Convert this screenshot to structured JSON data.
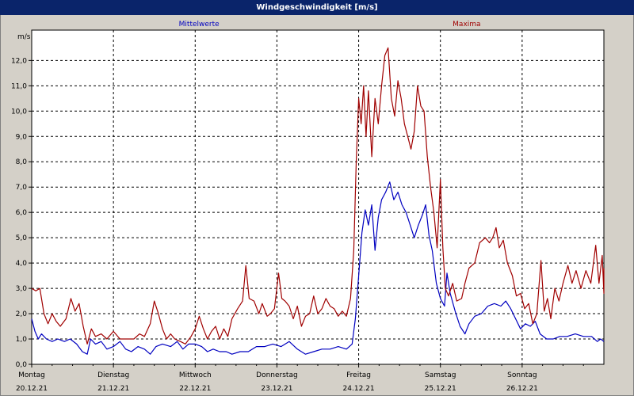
{
  "window": {
    "title": "Windgeschwindigkeit [m/s]"
  },
  "chart_data": {
    "type": "line",
    "title": "Windgeschwindigkeit [m/s]",
    "ylabel": "m/s",
    "ylim": [
      0,
      13.2
    ],
    "yticks": [
      "0,0",
      "1,0",
      "2,0",
      "3,0",
      "4,0",
      "5,0",
      "6,0",
      "7,0",
      "8,0",
      "9,0",
      "10,0",
      "11,0",
      "12,0"
    ],
    "xlim": [
      0,
      7
    ],
    "days": [
      {
        "day": "Montag",
        "date": "20.12.21"
      },
      {
        "day": "Dienstag",
        "date": "21.12.21"
      },
      {
        "day": "Mittwoch",
        "date": "22.12.21"
      },
      {
        "day": "Donnerstag",
        "date": "23.12.21"
      },
      {
        "day": "Freitag",
        "date": "24.12.21"
      },
      {
        "day": "Samstag",
        "date": "25.12.21"
      },
      {
        "day": "Sonntag",
        "date": "26.12.21"
      }
    ],
    "grid": true,
    "colors": {
      "mean": "#0000c0",
      "max": "#a00000"
    },
    "series": [
      {
        "name": "Mittelwerte",
        "points": [
          [
            0,
            1.8
          ],
          [
            0.04,
            1.3
          ],
          [
            0.08,
            1.0
          ],
          [
            0.12,
            1.2
          ],
          [
            0.18,
            1.0
          ],
          [
            0.25,
            0.9
          ],
          [
            0.32,
            1.0
          ],
          [
            0.4,
            0.9
          ],
          [
            0.47,
            1.0
          ],
          [
            0.55,
            0.8
          ],
          [
            0.62,
            0.5
          ],
          [
            0.68,
            0.4
          ],
          [
            0.72,
            1.0
          ],
          [
            0.78,
            0.8
          ],
          [
            0.85,
            0.9
          ],
          [
            0.92,
            0.6
          ],
          [
            1.0,
            0.7
          ],
          [
            1.08,
            0.9
          ],
          [
            1.15,
            0.6
          ],
          [
            1.22,
            0.5
          ],
          [
            1.3,
            0.7
          ],
          [
            1.38,
            0.6
          ],
          [
            1.45,
            0.4
          ],
          [
            1.52,
            0.7
          ],
          [
            1.6,
            0.8
          ],
          [
            1.7,
            0.7
          ],
          [
            1.78,
            0.9
          ],
          [
            1.85,
            0.6
          ],
          [
            1.92,
            0.8
          ],
          [
            2.0,
            0.8
          ],
          [
            2.08,
            0.7
          ],
          [
            2.15,
            0.5
          ],
          [
            2.22,
            0.6
          ],
          [
            2.3,
            0.5
          ],
          [
            2.38,
            0.5
          ],
          [
            2.45,
            0.4
          ],
          [
            2.55,
            0.5
          ],
          [
            2.65,
            0.5
          ],
          [
            2.75,
            0.7
          ],
          [
            2.85,
            0.7
          ],
          [
            2.95,
            0.8
          ],
          [
            3.05,
            0.7
          ],
          [
            3.15,
            0.9
          ],
          [
            3.25,
            0.6
          ],
          [
            3.35,
            0.4
          ],
          [
            3.45,
            0.5
          ],
          [
            3.55,
            0.6
          ],
          [
            3.65,
            0.6
          ],
          [
            3.75,
            0.7
          ],
          [
            3.85,
            0.6
          ],
          [
            3.92,
            0.8
          ],
          [
            3.96,
            1.8
          ],
          [
            4.0,
            3.5
          ],
          [
            4.04,
            5.2
          ],
          [
            4.08,
            6.1
          ],
          [
            4.12,
            5.5
          ],
          [
            4.16,
            6.3
          ],
          [
            4.2,
            4.5
          ],
          [
            4.24,
            5.8
          ],
          [
            4.28,
            6.5
          ],
          [
            4.33,
            6.8
          ],
          [
            4.38,
            7.2
          ],
          [
            4.43,
            6.5
          ],
          [
            4.48,
            6.8
          ],
          [
            4.53,
            6.3
          ],
          [
            4.58,
            6.0
          ],
          [
            4.63,
            5.5
          ],
          [
            4.68,
            5.0
          ],
          [
            4.73,
            5.5
          ],
          [
            4.78,
            5.9
          ],
          [
            4.82,
            6.3
          ],
          [
            4.86,
            5.1
          ],
          [
            4.9,
            4.5
          ],
          [
            4.95,
            3.2
          ],
          [
            5.0,
            2.6
          ],
          [
            5.05,
            2.3
          ],
          [
            5.08,
            3.6
          ],
          [
            5.12,
            2.8
          ],
          [
            5.18,
            2.1
          ],
          [
            5.24,
            1.5
          ],
          [
            5.3,
            1.2
          ],
          [
            5.35,
            1.6
          ],
          [
            5.42,
            1.9
          ],
          [
            5.5,
            2.0
          ],
          [
            5.58,
            2.3
          ],
          [
            5.66,
            2.4
          ],
          [
            5.74,
            2.3
          ],
          [
            5.8,
            2.5
          ],
          [
            5.86,
            2.2
          ],
          [
            5.92,
            1.8
          ],
          [
            5.98,
            1.4
          ],
          [
            6.04,
            1.6
          ],
          [
            6.1,
            1.5
          ],
          [
            6.16,
            1.7
          ],
          [
            6.22,
            1.2
          ],
          [
            6.3,
            1.0
          ],
          [
            6.38,
            1.0
          ],
          [
            6.46,
            1.1
          ],
          [
            6.55,
            1.1
          ],
          [
            6.65,
            1.2
          ],
          [
            6.75,
            1.1
          ],
          [
            6.85,
            1.1
          ],
          [
            6.92,
            0.9
          ],
          [
            6.96,
            1.0
          ],
          [
            7.0,
            0.9
          ]
        ]
      },
      {
        "name": "Maxima",
        "points": [
          [
            0,
            3.0
          ],
          [
            0.05,
            2.9
          ],
          [
            0.1,
            3.0
          ],
          [
            0.15,
            2.0
          ],
          [
            0.2,
            1.6
          ],
          [
            0.25,
            2.0
          ],
          [
            0.3,
            1.7
          ],
          [
            0.35,
            1.5
          ],
          [
            0.42,
            1.8
          ],
          [
            0.48,
            2.6
          ],
          [
            0.53,
            2.1
          ],
          [
            0.58,
            2.4
          ],
          [
            0.63,
            1.5
          ],
          [
            0.68,
            0.8
          ],
          [
            0.73,
            1.4
          ],
          [
            0.78,
            1.1
          ],
          [
            0.85,
            1.2
          ],
          [
            0.92,
            1.0
          ],
          [
            1.0,
            1.3
          ],
          [
            1.08,
            1.0
          ],
          [
            1.15,
            1.0
          ],
          [
            1.25,
            1.0
          ],
          [
            1.32,
            1.2
          ],
          [
            1.38,
            1.1
          ],
          [
            1.45,
            1.6
          ],
          [
            1.5,
            2.5
          ],
          [
            1.55,
            2.0
          ],
          [
            1.6,
            1.4
          ],
          [
            1.65,
            1.0
          ],
          [
            1.7,
            1.2
          ],
          [
            1.75,
            1.0
          ],
          [
            1.82,
            0.9
          ],
          [
            1.88,
            0.8
          ],
          [
            1.95,
            1.1
          ],
          [
            2.0,
            1.4
          ],
          [
            2.05,
            1.9
          ],
          [
            2.1,
            1.4
          ],
          [
            2.15,
            1.0
          ],
          [
            2.2,
            1.3
          ],
          [
            2.25,
            1.5
          ],
          [
            2.3,
            1.0
          ],
          [
            2.35,
            1.4
          ],
          [
            2.4,
            1.1
          ],
          [
            2.45,
            1.8
          ],
          [
            2.52,
            2.2
          ],
          [
            2.58,
            2.5
          ],
          [
            2.62,
            3.9
          ],
          [
            2.66,
            2.6
          ],
          [
            2.72,
            2.5
          ],
          [
            2.78,
            2.0
          ],
          [
            2.82,
            2.4
          ],
          [
            2.88,
            1.9
          ],
          [
            2.92,
            2.0
          ],
          [
            2.97,
            2.2
          ],
          [
            3.02,
            3.6
          ],
          [
            3.06,
            2.6
          ],
          [
            3.1,
            2.5
          ],
          [
            3.15,
            2.3
          ],
          [
            3.2,
            1.8
          ],
          [
            3.25,
            2.3
          ],
          [
            3.3,
            1.5
          ],
          [
            3.35,
            1.9
          ],
          [
            3.4,
            2.0
          ],
          [
            3.45,
            2.7
          ],
          [
            3.5,
            2.0
          ],
          [
            3.55,
            2.2
          ],
          [
            3.6,
            2.6
          ],
          [
            3.65,
            2.3
          ],
          [
            3.7,
            2.2
          ],
          [
            3.75,
            1.9
          ],
          [
            3.8,
            2.1
          ],
          [
            3.85,
            1.9
          ],
          [
            3.9,
            2.6
          ],
          [
            3.94,
            4.5
          ],
          [
            3.97,
            8.0
          ],
          [
            4.0,
            10.5
          ],
          [
            4.03,
            9.5
          ],
          [
            4.06,
            11.0
          ],
          [
            4.09,
            9.0
          ],
          [
            4.12,
            10.8
          ],
          [
            4.16,
            8.2
          ],
          [
            4.2,
            10.5
          ],
          [
            4.24,
            9.5
          ],
          [
            4.28,
            11.0
          ],
          [
            4.32,
            12.2
          ],
          [
            4.36,
            12.5
          ],
          [
            4.4,
            10.5
          ],
          [
            4.44,
            9.8
          ],
          [
            4.48,
            11.2
          ],
          [
            4.52,
            10.5
          ],
          [
            4.56,
            9.5
          ],
          [
            4.6,
            9.0
          ],
          [
            4.64,
            8.5
          ],
          [
            4.68,
            9.2
          ],
          [
            4.72,
            11.0
          ],
          [
            4.76,
            10.2
          ],
          [
            4.8,
            10.0
          ],
          [
            4.84,
            8.2
          ],
          [
            4.88,
            7.0
          ],
          [
            4.92,
            6.0
          ],
          [
            4.96,
            4.6
          ],
          [
            5.0,
            7.3
          ],
          [
            5.03,
            4.6
          ],
          [
            5.06,
            3.0
          ],
          [
            5.1,
            2.7
          ],
          [
            5.15,
            3.2
          ],
          [
            5.2,
            2.5
          ],
          [
            5.26,
            2.6
          ],
          [
            5.3,
            3.2
          ],
          [
            5.35,
            3.8
          ],
          [
            5.42,
            4.0
          ],
          [
            5.48,
            4.8
          ],
          [
            5.55,
            5.0
          ],
          [
            5.6,
            4.8
          ],
          [
            5.64,
            5.0
          ],
          [
            5.68,
            5.4
          ],
          [
            5.72,
            4.6
          ],
          [
            5.77,
            4.9
          ],
          [
            5.82,
            4.0
          ],
          [
            5.88,
            3.5
          ],
          [
            5.93,
            2.7
          ],
          [
            5.98,
            2.8
          ],
          [
            6.03,
            2.2
          ],
          [
            6.08,
            2.4
          ],
          [
            6.13,
            1.6
          ],
          [
            6.18,
            2.0
          ],
          [
            6.23,
            4.1
          ],
          [
            6.27,
            2.1
          ],
          [
            6.31,
            2.6
          ],
          [
            6.35,
            1.8
          ],
          [
            6.4,
            3.0
          ],
          [
            6.45,
            2.5
          ],
          [
            6.5,
            3.2
          ],
          [
            6.56,
            3.9
          ],
          [
            6.61,
            3.2
          ],
          [
            6.66,
            3.7
          ],
          [
            6.72,
            3.0
          ],
          [
            6.78,
            3.7
          ],
          [
            6.84,
            3.2
          ],
          [
            6.9,
            4.7
          ],
          [
            6.94,
            3.2
          ],
          [
            6.98,
            4.3
          ],
          [
            7.02,
            2.8
          ],
          [
            7.06,
            3.8
          ]
        ]
      }
    ]
  }
}
